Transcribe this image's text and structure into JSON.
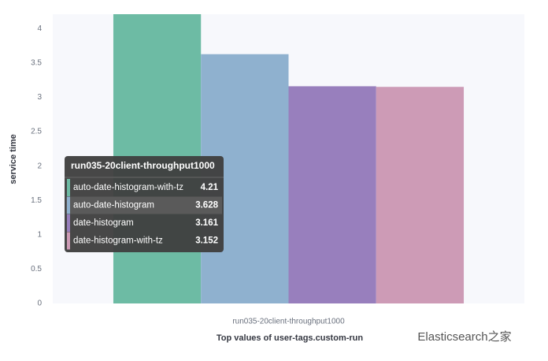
{
  "chart_data": {
    "type": "bar",
    "y_label": "service time",
    "x_label": "Top values of user-tags.custom-run",
    "categories": [
      "run035-20client-throughput1000"
    ],
    "series": [
      {
        "name": "auto-date-histogram-with-tz",
        "color": "#6dbba4",
        "values": [
          4.21
        ]
      },
      {
        "name": "auto-date-histogram",
        "color": "#8fb1cf",
        "values": [
          3.628
        ]
      },
      {
        "name": "date-histogram",
        "color": "#987fbd",
        "values": [
          3.161
        ]
      },
      {
        "name": "date-histogram-with-tz",
        "color": "#cd9bb6",
        "values": [
          3.152
        ]
      }
    ],
    "ylim": [
      0,
      4.21
    ],
    "yticks": [
      0,
      0.5,
      1,
      1.5,
      2,
      2.5,
      3,
      3.5,
      4
    ],
    "watermark": "Elasticsearch之家"
  }
}
